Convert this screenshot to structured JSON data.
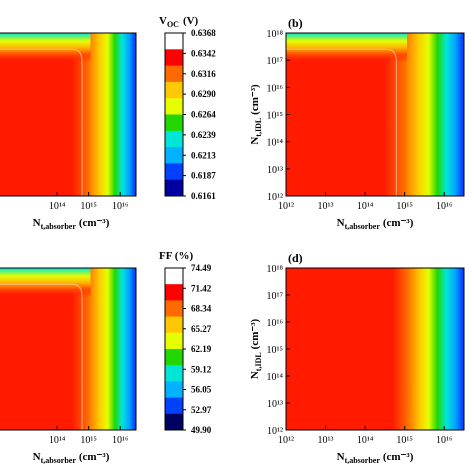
{
  "chart_data": [
    {
      "id": "a",
      "type": "heatmap",
      "panel_label": "",
      "xlabel": "N",
      "xlabel_sub": "t,absorber",
      "xlabel_unit": "(cm⁻³)",
      "x_tick_labels": [
        "10¹⁴",
        "10¹⁵",
        "10¹⁶"
      ],
      "ylabel": "",
      "y_tick_labels": [],
      "log_x": true,
      "xlim_exp": [
        12,
        16.5
      ],
      "colorbar": {
        "title": "V",
        "title_sub": "OC",
        "title_unit": "(V)",
        "ticks": [
          "0.6368",
          "0.6342",
          "0.6316",
          "0.6290",
          "0.6264",
          "0.6239",
          "0.6213",
          "0.6187",
          "0.6161"
        ],
        "colors": [
          "#ffffff",
          "#ff0000",
          "#ff6a00",
          "#ffc800",
          "#e6ff00",
          "#22d700",
          "#00e6d6",
          "#00b2ff",
          "#0040ff",
          "#0000a0"
        ]
      },
      "pattern": "corner"
    },
    {
      "id": "b",
      "type": "heatmap",
      "panel_label": "(b)",
      "xlabel": "N",
      "xlabel_sub": "t,absorber",
      "xlabel_unit": "(cm⁻³)",
      "x_tick_labels": [
        "10¹²",
        "10¹³",
        "10¹⁴",
        "10¹⁵",
        "10¹⁶"
      ],
      "ylabel": "N",
      "ylabel_sub": "t,IDL",
      "ylabel_unit": "(cm⁻³)",
      "y_tick_labels": [
        "10¹²",
        "10¹³",
        "10¹⁴",
        "10¹⁵",
        "10¹⁶",
        "10¹⁷",
        "10¹⁸"
      ],
      "log_x": true,
      "log_y": true,
      "xlim_exp": [
        12,
        16.5
      ],
      "ylim_exp": [
        12,
        18
      ],
      "pattern": "corner"
    },
    {
      "id": "c",
      "type": "heatmap",
      "panel_label": "",
      "xlabel": "N",
      "xlabel_sub": "t,absorber",
      "xlabel_unit": "(cm⁻³)",
      "x_tick_labels": [
        "10¹⁴",
        "10¹⁵",
        "10¹⁶"
      ],
      "ylabel": "",
      "y_tick_labels": [],
      "log_x": true,
      "xlim_exp": [
        12,
        16.5
      ],
      "colorbar": {
        "title": "FF (%)",
        "ticks": [
          "74.49",
          "71.42",
          "68.34",
          "65.27",
          "62.19",
          "59.12",
          "56.05",
          "52.97",
          "49.90"
        ],
        "colors": [
          "#ffffff",
          "#ff0000",
          "#ff6a00",
          "#ffc800",
          "#e6ff00",
          "#22d700",
          "#00e6d6",
          "#00b2ff",
          "#0040ff",
          "#000060"
        ]
      },
      "pattern": "corner"
    },
    {
      "id": "d",
      "type": "heatmap",
      "panel_label": "(d)",
      "xlabel": "N",
      "xlabel_sub": "t,absorber",
      "xlabel_unit": "(cm⁻³)",
      "x_tick_labels": [
        "10¹²",
        "10¹³",
        "10¹⁴",
        "10¹⁵",
        "10¹⁶"
      ],
      "ylabel": "N",
      "ylabel_sub": "t,IDL",
      "ylabel_unit": "(cm⁻³)",
      "y_tick_labels": [
        "10¹²",
        "10¹³",
        "10¹⁴",
        "10¹⁵",
        "10¹⁶",
        "10¹⁷",
        "10¹⁸"
      ],
      "log_x": true,
      "log_y": true,
      "xlim_exp": [
        12,
        16.5
      ],
      "ylim_exp": [
        12,
        18
      ],
      "pattern": "vertical"
    }
  ]
}
